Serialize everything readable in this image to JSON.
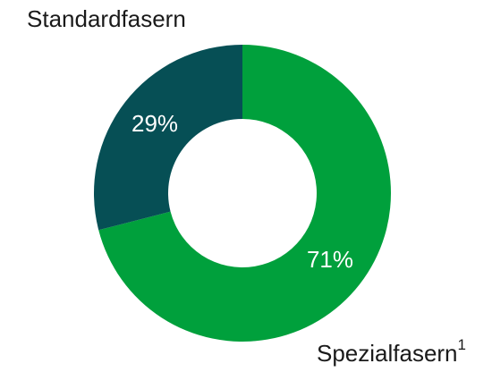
{
  "chart_data": {
    "type": "donut",
    "categories": [
      "Standardfasern",
      "Spezialfasern"
    ],
    "footnote_marker": "1",
    "values": [
      29,
      71
    ],
    "value_labels": [
      "29%",
      "71%"
    ],
    "colors": [
      "#064f55",
      "#00a03c"
    ]
  }
}
